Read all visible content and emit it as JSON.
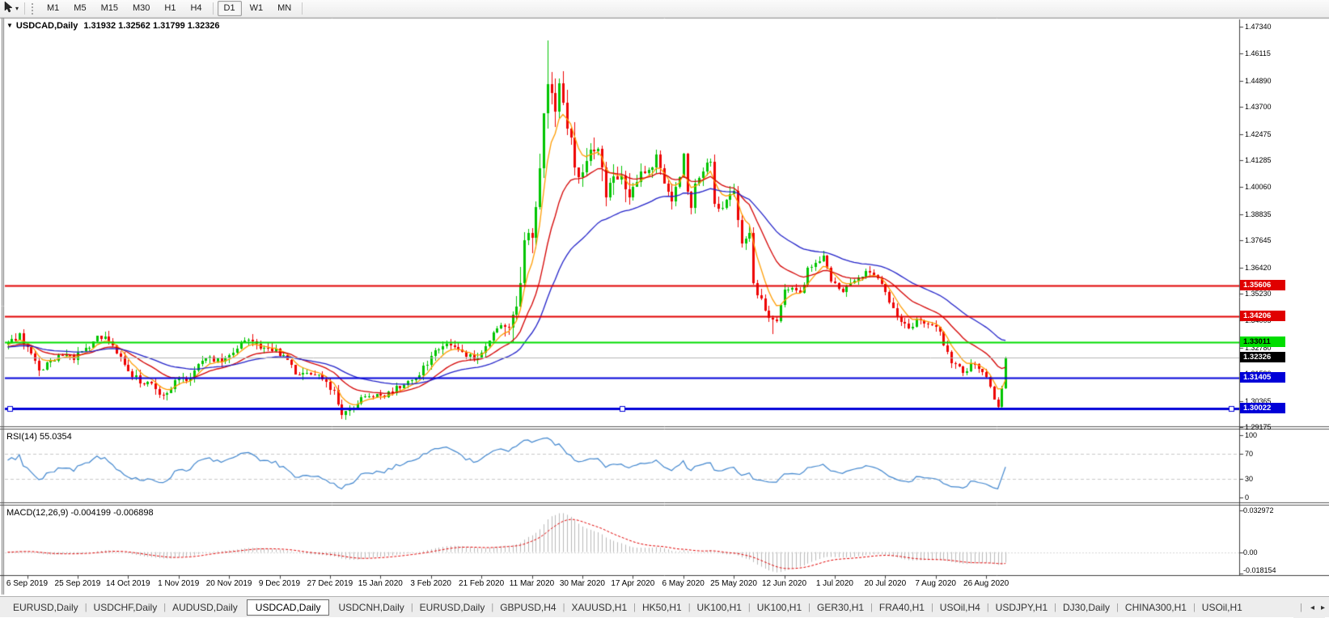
{
  "icons": {
    "menu_arrow": "▼",
    "toolbar_caret": "▾",
    "tab_left_arrow": "◂",
    "tab_right_arrow": "▸"
  },
  "toolbar": {
    "timeframes": [
      "M1",
      "M5",
      "M15",
      "M30",
      "H1",
      "H4",
      "D1",
      "W1",
      "MN"
    ],
    "active": "D1"
  },
  "chart": {
    "symbol": "USDCAD,Daily",
    "ohlc_text": "1.31932 1.32562 1.31799 1.32326",
    "price_ticks": [
      "1.47340",
      "1.46115",
      "1.44890",
      "1.43700",
      "1.42475",
      "1.41285",
      "1.40060",
      "1.38835",
      "1.37645",
      "1.36420",
      "1.35230",
      "1.34005",
      "1.32780",
      "1.31590",
      "1.30365",
      "1.29175"
    ],
    "date_ticks": [
      "6 Sep 2019",
      "25 Sep 2019",
      "14 Oct 2019",
      "1 Nov 2019",
      "20 Nov 2019",
      "9 Dec 2019",
      "27 Dec 2019",
      "15 Jan 2020",
      "3 Feb 2020",
      "21 Feb 2020",
      "11 Mar 2020",
      "30 Mar 2020",
      "17 Apr 2020",
      "6 May 2020",
      "25 May 2020",
      "12 Jun 2020",
      "1 Jul 2020",
      "20 Jul 2020",
      "7 Aug 2020",
      "26 Aug 2020"
    ],
    "hlines": [
      {
        "price": 1.35606,
        "label": "1.35606",
        "color": "#e00000",
        "text_color": "#ffffff",
        "thickness": 2,
        "selected": false
      },
      {
        "price": 1.34206,
        "label": "1.34206",
        "color": "#e00000",
        "text_color": "#ffffff",
        "thickness": 2,
        "selected": false
      },
      {
        "price": 1.33011,
        "label": "1.33011",
        "color": "#00dd00",
        "text_color": "#000000",
        "thickness": 2,
        "selected": false
      },
      {
        "price": 1.31405,
        "label": "1.31405",
        "color": "#0000d8",
        "text_color": "#ffffff",
        "thickness": 2,
        "selected": false
      },
      {
        "price": 1.30022,
        "label": "1.30022",
        "color": "#0000d8",
        "text_color": "#ffffff",
        "thickness": 3,
        "selected": true
      }
    ],
    "bid": {
      "price": 1.32326,
      "label": "1.32326",
      "line_color": "#b4b4b4",
      "box_color": "#000000",
      "text_color": "#ffffff"
    }
  },
  "rsi": {
    "header": "RSI(14) 55.0354",
    "levels": [
      {
        "value": 100,
        "label": "100",
        "dashed": false
      },
      {
        "value": 70,
        "label": "70",
        "dashed": true
      },
      {
        "value": 30,
        "label": "30",
        "dashed": true
      },
      {
        "value": 0,
        "label": "0",
        "dashed": false
      }
    ]
  },
  "macd": {
    "header": "MACD(12,26,9) -0.004199 -0.006898",
    "axis": [
      {
        "value": 0.032972,
        "label": "0.032972"
      },
      {
        "value": 0,
        "label": "0.00"
      },
      {
        "value": -0.018154,
        "label": "-0.018154"
      }
    ]
  },
  "tabs": {
    "items": [
      "EURUSD,Daily",
      "USDCHF,Daily",
      "AUDUSD,Daily",
      "USDCAD,Daily",
      "USDCNH,Daily",
      "EURUSD,Daily",
      "GBPUSD,H4",
      "XAUUSD,H1",
      "HK50,H1",
      "UK100,H1",
      "UK100,H1",
      "GER30,H1",
      "FRA40,H1",
      "USOil,H4",
      "USDJPY,H1",
      "DJ30,Daily",
      "CHINA300,H1",
      "USOil,H1"
    ],
    "active_index": 3
  },
  "chart_data": {
    "type": "candlestick",
    "symbol": "USDCAD",
    "timeframe": "Daily",
    "last_quote": {
      "open": 1.31932,
      "high": 1.32562,
      "low": 1.31799,
      "close": 1.32326
    },
    "y_axis": {
      "min": 1.29175,
      "max": 1.4734
    },
    "num_candles": 258,
    "first_date_tick_index": 5,
    "candles_per_date_tick": 13,
    "close_path_anchors": [
      [
        0,
        1.329
      ],
      [
        3,
        1.3335
      ],
      [
        6,
        1.324
      ],
      [
        8,
        1.318
      ],
      [
        11,
        1.3215
      ],
      [
        14,
        1.325
      ],
      [
        17,
        1.323
      ],
      [
        20,
        1.327
      ],
      [
        23,
        1.332
      ],
      [
        25,
        1.3335
      ],
      [
        27,
        1.329
      ],
      [
        29,
        1.323
      ],
      [
        31,
        1.3165
      ],
      [
        34,
        1.313
      ],
      [
        37,
        1.3105
      ],
      [
        40,
        1.306
      ],
      [
        42,
        1.3085
      ],
      [
        44,
        1.315
      ],
      [
        46,
        1.313
      ],
      [
        48,
        1.317
      ],
      [
        51,
        1.3235
      ],
      [
        54,
        1.3215
      ],
      [
        57,
        1.3245
      ],
      [
        60,
        1.3295
      ],
      [
        63,
        1.3305
      ],
      [
        66,
        1.3275
      ],
      [
        69,
        1.326
      ],
      [
        72,
        1.3215
      ],
      [
        74,
        1.317
      ],
      [
        77,
        1.3155
      ],
      [
        80,
        1.3165
      ],
      [
        82,
        1.312
      ],
      [
        84,
        1.3075
      ],
      [
        86,
        1.2985
      ],
      [
        88,
        1.2995
      ],
      [
        90,
        1.3035
      ],
      [
        93,
        1.3055
      ],
      [
        96,
        1.3055
      ],
      [
        99,
        1.3085
      ],
      [
        102,
        1.311
      ],
      [
        105,
        1.3145
      ],
      [
        107,
        1.3185
      ],
      [
        109,
        1.323
      ],
      [
        111,
        1.328
      ],
      [
        113,
        1.33
      ],
      [
        115,
        1.327
      ],
      [
        117,
        1.325
      ],
      [
        119,
        1.3235
      ],
      [
        121,
        1.324
      ],
      [
        123,
        1.329
      ],
      [
        125,
        1.3355
      ],
      [
        127,
        1.339
      ],
      [
        129,
        1.34
      ],
      [
        131,
        1.343
      ],
      [
        132,
        1.36
      ],
      [
        133,
        1.3735
      ],
      [
        134,
        1.379
      ],
      [
        135,
        1.376
      ],
      [
        136,
        1.3935
      ],
      [
        137,
        1.41
      ],
      [
        138,
        1.435
      ],
      [
        139,
        1.45
      ],
      [
        140,
        1.445
      ],
      [
        141,
        1.434
      ],
      [
        142,
        1.445
      ],
      [
        143,
        1.439
      ],
      [
        144,
        1.43
      ],
      [
        145,
        1.423
      ],
      [
        146,
        1.411
      ],
      [
        147,
        1.404
      ],
      [
        148,
        1.406
      ],
      [
        150,
        1.42
      ],
      [
        152,
        1.415
      ],
      [
        154,
        1.3985
      ],
      [
        156,
        1.409
      ],
      [
        158,
        1.402
      ],
      [
        160,
        1.397
      ],
      [
        161,
        1.4
      ],
      [
        163,
        1.407
      ],
      [
        165,
        1.409
      ],
      [
        167,
        1.4135
      ],
      [
        169,
        1.404
      ],
      [
        171,
        1.395
      ],
      [
        173,
        1.406
      ],
      [
        174,
        1.414
      ],
      [
        175,
        1.398
      ],
      [
        176,
        1.392
      ],
      [
        177,
        1.402
      ],
      [
        179,
        1.409
      ],
      [
        181,
        1.411
      ],
      [
        182,
        1.391
      ],
      [
        184,
        1.393
      ],
      [
        187,
        1.3985
      ],
      [
        189,
        1.3745
      ],
      [
        191,
        1.378
      ],
      [
        192,
        1.3565
      ],
      [
        196,
        1.3425
      ],
      [
        198,
        1.339
      ],
      [
        200,
        1.354
      ],
      [
        202,
        1.356
      ],
      [
        204,
        1.353
      ],
      [
        206,
        1.3625
      ],
      [
        208,
        1.366
      ],
      [
        210,
        1.3685
      ],
      [
        212,
        1.3576
      ],
      [
        213,
        1.358
      ],
      [
        215,
        1.353
      ],
      [
        218,
        1.357
      ],
      [
        220,
        1.3595
      ],
      [
        221,
        1.3615
      ],
      [
        225,
        1.358
      ],
      [
        226,
        1.3535
      ],
      [
        229,
        1.341
      ],
      [
        232,
        1.336
      ],
      [
        235,
        1.3412
      ],
      [
        237,
        1.339
      ],
      [
        239,
        1.3385
      ],
      [
        241,
        1.33
      ],
      [
        243,
        1.322
      ],
      [
        246,
        1.316
      ],
      [
        248,
        1.32
      ],
      [
        251,
        1.318
      ],
      [
        252,
        1.315
      ],
      [
        253,
        1.3095
      ],
      [
        254,
        1.304
      ],
      [
        255,
        1.3005
      ],
      [
        256,
        1.3095
      ],
      [
        257,
        1.32326
      ]
    ],
    "forced_extremes": {
      "86": {
        "low": 1.2955
      },
      "139": {
        "high": 1.467
      },
      "197": {
        "low": 1.334
      },
      "255": {
        "low": 1.2994
      }
    },
    "volatility_zones": [
      {
        "from": 128,
        "to": 160,
        "body": 0.0038,
        "wick": 0.0075
      },
      {
        "from": 161,
        "to": 195,
        "body": 0.002,
        "wick": 0.0038
      }
    ],
    "default_volatility": {
      "body": 0.0014,
      "wick": 0.0025
    },
    "colors": {
      "up": "#00c400",
      "down": "#ee0000",
      "ma_fast": "#ff9c00",
      "ma_mid": "#d40000",
      "ma_slow": "#2121c8",
      "rsi_line": "#4186ce",
      "rsi_guide": "#c8c8c8",
      "macd_hist": "#b8b8b8",
      "macd_signal": "#e00000"
    },
    "moving_averages": [
      {
        "name": "ma-fast",
        "period": 6,
        "color_key": "ma_fast"
      },
      {
        "name": "ma-mid",
        "period": 18,
        "color_key": "ma_mid"
      },
      {
        "name": "ma-slow",
        "period": 40,
        "color_key": "ma_slow"
      }
    ],
    "horizontal_line_levels": [
      1.35606,
      1.34206,
      1.33011,
      1.31405,
      1.30022
    ],
    "indicators": {
      "rsi": {
        "period": 14,
        "value": 55.0354,
        "range": [
          0,
          100
        ],
        "guide_levels": [
          70,
          30
        ]
      },
      "macd": {
        "fast": 12,
        "slow": 26,
        "signal": 9,
        "value": -0.004199,
        "signal_value": -0.006898,
        "axis_top": 0.032972,
        "axis_bottom": -0.018154
      }
    }
  }
}
